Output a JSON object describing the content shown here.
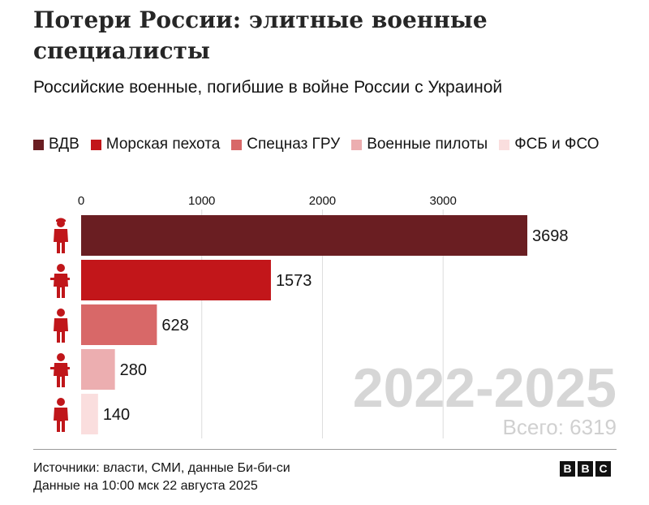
{
  "title": "Потери России: элитные военные специалисты",
  "subtitle": "Российские военные, погибшие в войне России с Украиной",
  "legend": [
    {
      "label": "ВДВ",
      "color": "#6a1e22"
    },
    {
      "label": "Морская пехота",
      "color": "#c2161a"
    },
    {
      "label": "Спецназ ГРУ",
      "color": "#d86868"
    },
    {
      "label": "Военные пилоты",
      "color": "#ecaeb0"
    },
    {
      "label": "ФСБ и ФСО",
      "color": "#fadede"
    }
  ],
  "chart_data": {
    "type": "bar",
    "orientation": "horizontal",
    "categories": [
      "ВДВ",
      "Морская пехота",
      "Спецназ ГРУ",
      "Военные пилоты",
      "ФСБ и ФСО"
    ],
    "values": [
      3698,
      1573,
      628,
      280,
      140
    ],
    "colors": [
      "#6a1e22",
      "#c2161a",
      "#d86868",
      "#ecaeb0",
      "#fadede"
    ],
    "x_ticks": [
      0,
      1000,
      2000,
      3000
    ],
    "xlim": [
      0,
      3698
    ],
    "grid": true,
    "period_label": "2022-2025",
    "total_label": "Всего: 6319",
    "icon_names": [
      "paratrooper-icon",
      "marine-icon",
      "special-forces-icon",
      "pilot-icon",
      "security-officer-icon"
    ]
  },
  "footer": {
    "sources": "Источники: власти, СМИ, данные Би-би-си",
    "date": "Данные на 10:00 мск 22 августа 2025"
  },
  "logo": [
    "B",
    "B",
    "C"
  ]
}
